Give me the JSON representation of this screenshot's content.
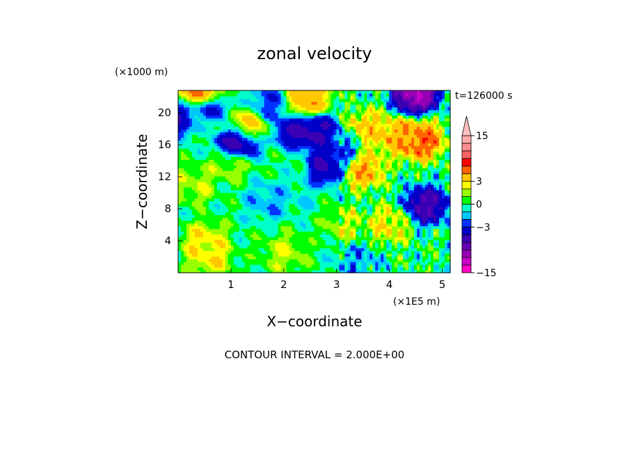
{
  "chart_data": {
    "type": "heatmap",
    "title": "zonal velocity",
    "time_label": "t=126000 s",
    "xlabel": "X−coordinate",
    "x_unit": "(×1E5 m)",
    "ylabel": "Z−coordinate",
    "y_unit": "(×1000 m)",
    "xlim": [
      0,
      5.15
    ],
    "ylim": [
      0,
      22.8
    ],
    "x_ticks": [
      1,
      2,
      3,
      4,
      5
    ],
    "x_tick_labels": [
      "1",
      "2",
      "3",
      "4",
      "5"
    ],
    "y_ticks": [
      4,
      8,
      12,
      16,
      20
    ],
    "y_tick_labels": [
      "4",
      "8",
      "12",
      "16",
      "20"
    ],
    "footer": "CONTOUR INTERVAL = 2.000E+00",
    "colorbar": {
      "levels": [
        -15,
        -13,
        -11,
        -9,
        -7,
        -5,
        -3,
        -2,
        -1,
        0,
        1,
        2,
        3,
        5,
        7,
        9,
        11,
        13,
        15,
        17
      ],
      "colors": [
        "#ff00c8",
        "#c800c8",
        "#9600b4",
        "#6400b4",
        "#3c00b4",
        "#0000c8",
        "#0032ff",
        "#00c8ff",
        "#00ffc8",
        "#00ff00",
        "#96ff00",
        "#ffff00",
        "#ffc800",
        "#ff6400",
        "#ff0000",
        "#ff6464",
        "#ff8c8c",
        "#ffaaaa",
        "#ffbebe"
      ],
      "tick_labels": [
        "15",
        "3",
        "0",
        "−3",
        "−15"
      ],
      "tick_values": [
        15,
        3,
        0,
        -3,
        -15
      ]
    },
    "features": [
      {
        "x": 0.4,
        "z": 22.5,
        "v": 6
      },
      {
        "x": 0.45,
        "z": 19.0,
        "v": 3
      },
      {
        "x": 0.15,
        "z": 19.2,
        "v": -6
      },
      {
        "x": 0.55,
        "z": 20.0,
        "v": -6
      },
      {
        "x": 1.1,
        "z": 16.2,
        "v": -8
      },
      {
        "x": 1.3,
        "z": 18.5,
        "v": 4
      },
      {
        "x": 1.7,
        "z": 21.0,
        "v": -3
      },
      {
        "x": 2.25,
        "z": 17.5,
        "v": -6
      },
      {
        "x": 2.45,
        "z": 21.5,
        "v": 5
      },
      {
        "x": 2.6,
        "z": 17.8,
        "v": -6
      },
      {
        "x": 2.8,
        "z": 13.5,
        "v": -6
      },
      {
        "x": 3.1,
        "z": 15.5,
        "v": -3
      },
      {
        "x": 3.5,
        "z": 13.0,
        "v": 5
      },
      {
        "x": 3.6,
        "z": 18.0,
        "v": 4
      },
      {
        "x": 4.2,
        "z": 17.0,
        "v": 5
      },
      {
        "x": 4.6,
        "z": 16.5,
        "v": 7
      },
      {
        "x": 4.5,
        "z": 22.5,
        "v": -12
      },
      {
        "x": 4.7,
        "z": 8.5,
        "v": -7
      },
      {
        "x": 4.0,
        "z": 6.0,
        "v": 3
      },
      {
        "x": 3.2,
        "z": 6.0,
        "v": 2
      },
      {
        "x": 0.3,
        "z": 11.0,
        "v": 2
      },
      {
        "x": 1.7,
        "z": 9.0,
        "v": -2
      },
      {
        "x": 2.2,
        "z": 10.0,
        "v": -1
      },
      {
        "x": 0.5,
        "z": 4.0,
        "v": 3
      },
      {
        "x": 0.6,
        "z": 2.0,
        "v": 3
      },
      {
        "x": 2.0,
        "z": 2.5,
        "v": 2
      },
      {
        "x": 3.4,
        "z": 1.5,
        "v": -2
      },
      {
        "x": 1.0,
        "z": 14.0,
        "v": 2
      },
      {
        "x": 2.1,
        "z": 14.0,
        "v": 0
      }
    ]
  }
}
